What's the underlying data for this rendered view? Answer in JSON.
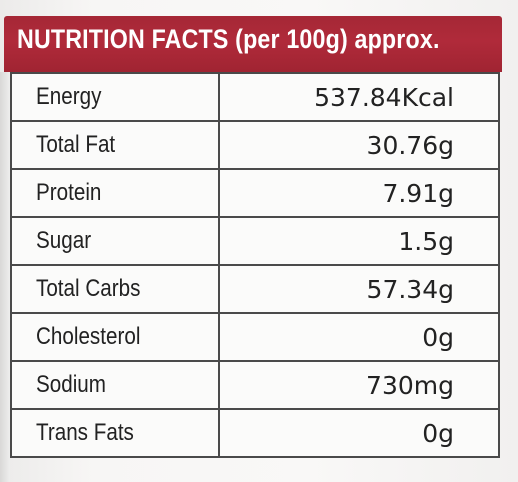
{
  "label": {
    "title": "NUTRITION FACTS (per 100g) approx.",
    "brand_color": "#a52836",
    "rows": [
      {
        "nutrient": "Energy",
        "amount": "537.84Kcal"
      },
      {
        "nutrient": "Total Fat",
        "amount": "30.76g"
      },
      {
        "nutrient": "Protein",
        "amount": "7.91g"
      },
      {
        "nutrient": "Sugar",
        "amount": "1.5g"
      },
      {
        "nutrient": "Total Carbs",
        "amount": "57.34g"
      },
      {
        "nutrient": "Cholesterol",
        "amount": "0g"
      },
      {
        "nutrient": "Sodium",
        "amount": "730mg"
      },
      {
        "nutrient": "Trans Fats",
        "amount": "0g"
      }
    ]
  }
}
